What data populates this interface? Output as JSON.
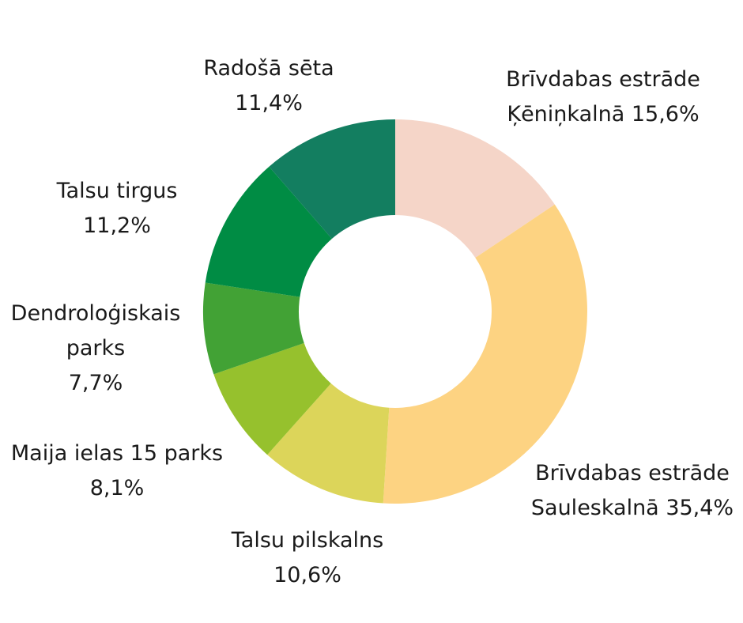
{
  "chart_data": {
    "type": "pie",
    "donut": true,
    "title": "",
    "slices": [
      {
        "label_lines": [
          "Brīvdabas estrāde",
          "Ķēniņkalnā 15,6%"
        ],
        "value": 15.6,
        "color": "#f5d5c8"
      },
      {
        "label_lines": [
          "Brīvdabas estrāde",
          "Sauleskalnā 35,4%"
        ],
        "value": 35.4,
        "color": "#fdd382"
      },
      {
        "label_lines": [
          "Talsu pilskalns",
          "10,6%"
        ],
        "value": 10.6,
        "color": "#dcd55a"
      },
      {
        "label_lines": [
          "Maija ielas 15 parks",
          "8,1%"
        ],
        "value": 8.1,
        "color": "#96c12d"
      },
      {
        "label_lines": [
          "Dendroloģiskais",
          "parks",
          "7,7%"
        ],
        "value": 7.7,
        "color": "#42a235"
      },
      {
        "label_lines": [
          "Talsu tirgus",
          "11,2%"
        ],
        "value": 11.2,
        "color": "#008c44"
      },
      {
        "label_lines": [
          "Radošā sēta",
          "11,4%"
        ],
        "value": 11.4,
        "color": "#137e60"
      }
    ]
  }
}
